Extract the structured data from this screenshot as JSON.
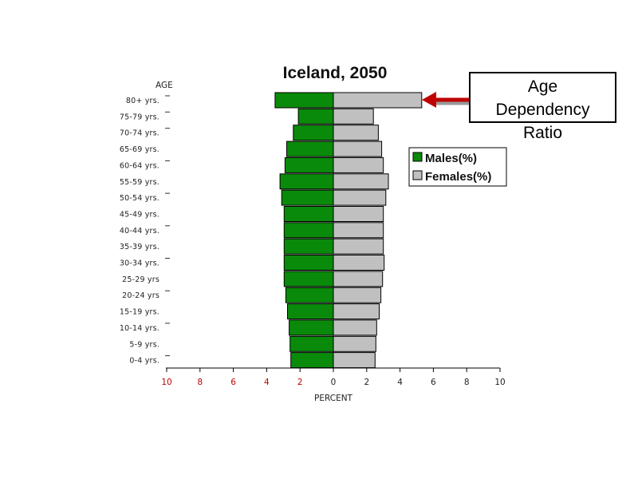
{
  "chart_data": {
    "type": "bar",
    "title": "Iceland, 2050",
    "y_axis_title": "AGE",
    "xlabel": "PERCENT",
    "categories": [
      "80+ yrs.",
      "75-79 yrs.",
      "70-74 yrs.",
      "65-69 yrs.",
      "60-64 yrs.",
      "55-59 yrs.",
      "50-54 yrs.",
      "45-49 yrs.",
      "40-44 yrs.",
      "35-39 yrs.",
      "30-34 yrs.",
      "25-29 yrs",
      "20-24 yrs",
      "15-19 yrs.",
      "10-14 yrs.",
      "5-9 yrs.",
      "0-4 yrs."
    ],
    "series": [
      {
        "name": "Males(%)",
        "color": "#0a8a0a",
        "values": [
          3.5,
          2.1,
          2.4,
          2.8,
          2.9,
          3.2,
          3.1,
          2.95,
          2.95,
          2.95,
          2.95,
          2.95,
          2.85,
          2.75,
          2.65,
          2.6,
          2.55
        ]
      },
      {
        "name": "Females(%)",
        "color": "#c0c0c0",
        "values": [
          5.3,
          2.4,
          2.7,
          2.9,
          3.0,
          3.3,
          3.15,
          3.0,
          3.0,
          3.0,
          3.05,
          2.95,
          2.85,
          2.75,
          2.6,
          2.55,
          2.5
        ]
      }
    ],
    "xlim": [
      -10,
      10
    ],
    "x_ticks_left": [
      "10",
      "8",
      "6",
      "4",
      "2"
    ],
    "x_ticks_right": [
      "0",
      "2",
      "4",
      "6",
      "8",
      "10"
    ],
    "legend_position": "right",
    "grid": false
  },
  "annotation": {
    "callout_lines": [
      "Age",
      "Dependency",
      "Ratio"
    ],
    "arrow_color": "#c00000",
    "arrow_target": "80+ yrs."
  }
}
